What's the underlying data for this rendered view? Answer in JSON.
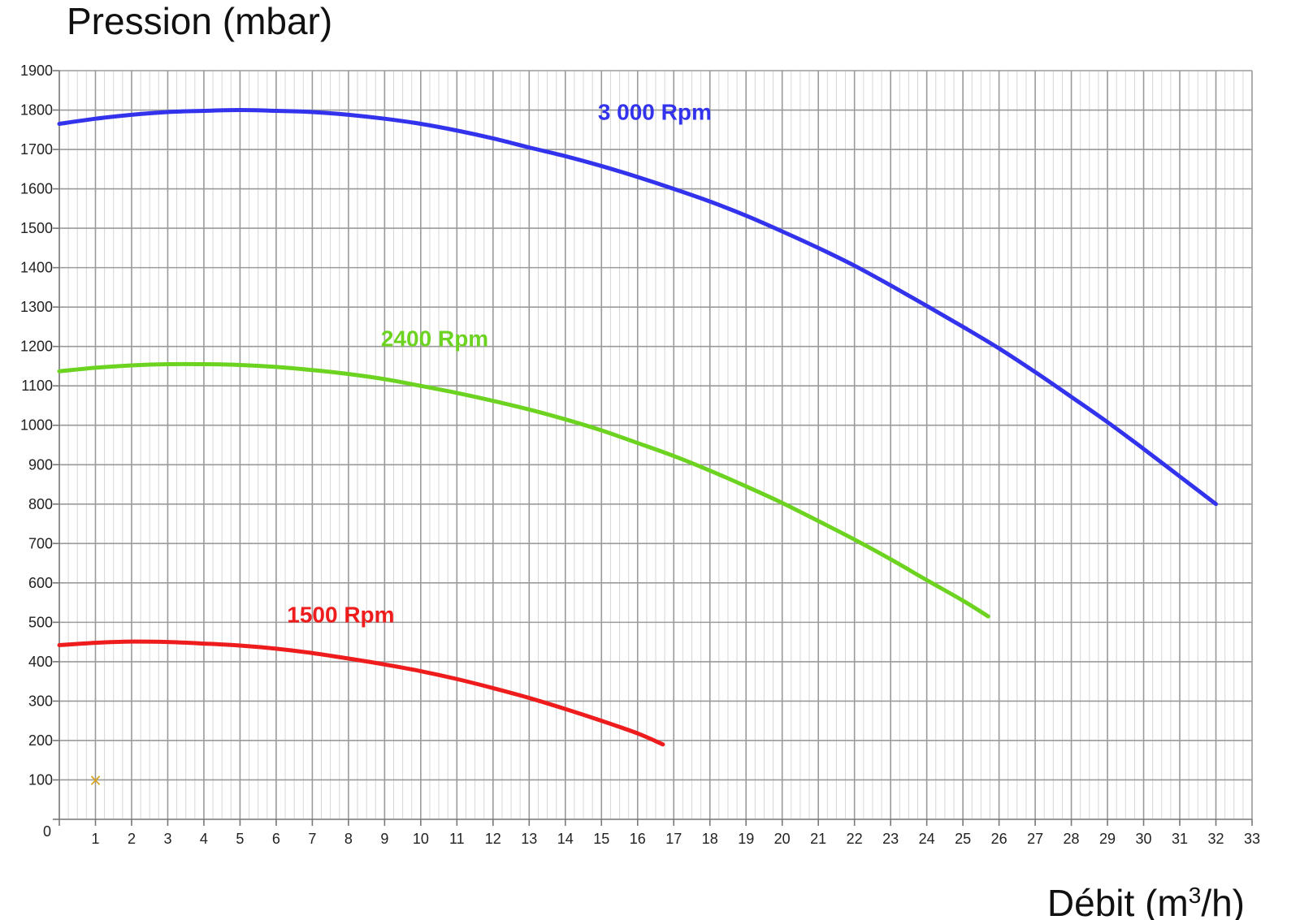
{
  "chart_data": {
    "type": "line",
    "ylabel": "Pression (mbar)",
    "xlabel_main": "Débit (m",
    "xlabel_sup": "3",
    "xlabel_end": "/h)",
    "xlim": [
      0,
      33
    ],
    "ylim": [
      0,
      1900
    ],
    "x_ticks": [
      1,
      2,
      3,
      4,
      5,
      6,
      7,
      8,
      9,
      10,
      11,
      12,
      13,
      14,
      15,
      16,
      17,
      18,
      19,
      20,
      21,
      22,
      23,
      24,
      25,
      26,
      27,
      28,
      29,
      30,
      31,
      32,
      33
    ],
    "y_ticks": [
      0,
      100,
      200,
      300,
      400,
      500,
      600,
      700,
      800,
      900,
      1000,
      1100,
      1200,
      1300,
      1400,
      1500,
      1600,
      1700,
      1800,
      1900
    ],
    "grid": true,
    "series": [
      {
        "name": "3 000 Rpm",
        "color": "#3333ee",
        "label_at": [
          14.9,
          1775
        ],
        "points": [
          [
            0,
            1765
          ],
          [
            1,
            1778
          ],
          [
            2,
            1788
          ],
          [
            3,
            1795
          ],
          [
            4,
            1798
          ],
          [
            5,
            1800
          ],
          [
            6,
            1798
          ],
          [
            7,
            1795
          ],
          [
            8,
            1788
          ],
          [
            9,
            1778
          ],
          [
            10,
            1765
          ],
          [
            11,
            1748
          ],
          [
            12,
            1728
          ],
          [
            13,
            1705
          ],
          [
            14,
            1683
          ],
          [
            15,
            1658
          ],
          [
            16,
            1630
          ],
          [
            17,
            1600
          ],
          [
            18,
            1568
          ],
          [
            19,
            1532
          ],
          [
            20,
            1492
          ],
          [
            21,
            1450
          ],
          [
            22,
            1405
          ],
          [
            23,
            1355
          ],
          [
            24,
            1303
          ],
          [
            25,
            1250
          ],
          [
            26,
            1195
          ],
          [
            27,
            1135
          ],
          [
            28,
            1072
          ],
          [
            29,
            1008
          ],
          [
            30,
            940
          ],
          [
            31,
            870
          ],
          [
            32,
            800
          ]
        ]
      },
      {
        "name": "2400 Rpm",
        "color": "#6dd321",
        "label_at": [
          8.9,
          1200
        ],
        "points": [
          [
            0,
            1137
          ],
          [
            1,
            1146
          ],
          [
            2,
            1152
          ],
          [
            3,
            1155
          ],
          [
            4,
            1155
          ],
          [
            5,
            1153
          ],
          [
            6,
            1148
          ],
          [
            7,
            1140
          ],
          [
            8,
            1130
          ],
          [
            9,
            1117
          ],
          [
            10,
            1100
          ],
          [
            11,
            1082
          ],
          [
            12,
            1062
          ],
          [
            13,
            1040
          ],
          [
            14,
            1015
          ],
          [
            15,
            987
          ],
          [
            16,
            955
          ],
          [
            17,
            922
          ],
          [
            18,
            885
          ],
          [
            19,
            845
          ],
          [
            20,
            803
          ],
          [
            21,
            757
          ],
          [
            22,
            710
          ],
          [
            23,
            660
          ],
          [
            24,
            607
          ],
          [
            25,
            555
          ],
          [
            25.7,
            515
          ]
        ]
      },
      {
        "name": "1500 Rpm",
        "color": "#ee1c1c",
        "label_at": [
          6.3,
          500
        ],
        "points": [
          [
            0,
            442
          ],
          [
            1,
            448
          ],
          [
            2,
            451
          ],
          [
            3,
            450
          ],
          [
            4,
            446
          ],
          [
            5,
            441
          ],
          [
            6,
            433
          ],
          [
            7,
            422
          ],
          [
            8,
            408
          ],
          [
            9,
            393
          ],
          [
            10,
            376
          ],
          [
            11,
            356
          ],
          [
            12,
            333
          ],
          [
            13,
            308
          ],
          [
            14,
            280
          ],
          [
            15,
            250
          ],
          [
            16,
            218
          ],
          [
            16.7,
            190
          ]
        ]
      }
    ],
    "markers": [
      {
        "x": 1,
        "y": 100,
        "symbol": "×",
        "color": "#d9a21b"
      }
    ]
  }
}
